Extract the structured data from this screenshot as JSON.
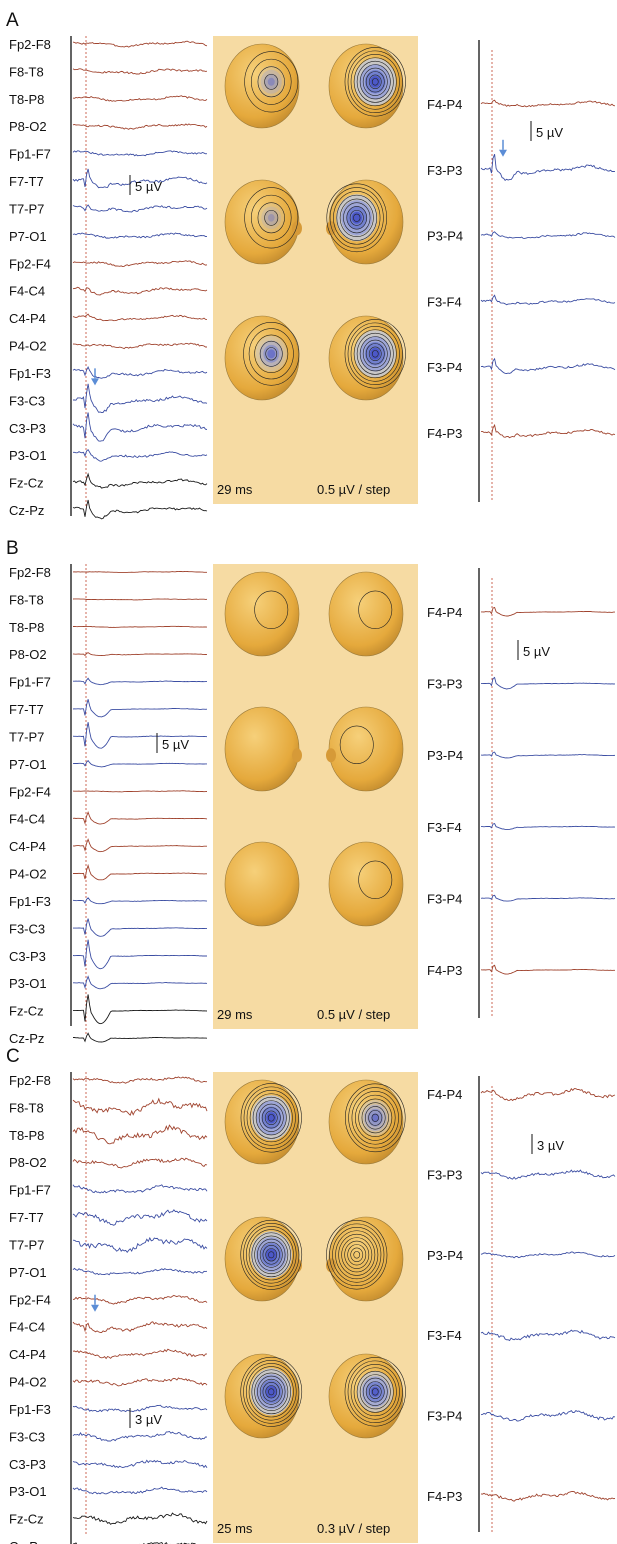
{
  "panels": [
    {
      "letter": "A",
      "time_label": "29 ms",
      "step_label": "0.5 µV / step",
      "left_scale": "5 µV",
      "right_scale": "5 µV",
      "left_channels": [
        {
          "label": "Fp2-F8",
          "color": "red",
          "amp": 1.0,
          "event": 0
        },
        {
          "label": "F8-T8",
          "color": "red",
          "amp": 1.0,
          "event": 0
        },
        {
          "label": "T8-P8",
          "color": "red",
          "amp": 1.0,
          "event": 0
        },
        {
          "label": "P8-O2",
          "color": "red",
          "amp": 1.0,
          "event": 0
        },
        {
          "label": "Fp1-F7",
          "color": "blue",
          "amp": 1.0,
          "event": 0
        },
        {
          "label": "F7-T7",
          "color": "blue",
          "amp": 1.5,
          "event": 6
        },
        {
          "label": "T7-P7",
          "color": "blue",
          "amp": 1.2,
          "event": 2
        },
        {
          "label": "P7-O1",
          "color": "blue",
          "amp": 1.0,
          "event": 0
        },
        {
          "label": "Fp2-F4",
          "color": "red",
          "amp": 1.0,
          "event": 0
        },
        {
          "label": "F4-C4",
          "color": "red",
          "amp": 1.2,
          "event": 2
        },
        {
          "label": "C4-P4",
          "color": "red",
          "amp": 1.0,
          "event": 1
        },
        {
          "label": "P4-O2",
          "color": "red",
          "amp": 1.0,
          "event": 0
        },
        {
          "label": "Fp1-F3",
          "color": "blue",
          "amp": 1.2,
          "event": 3
        },
        {
          "label": "F3-C3",
          "color": "blue",
          "amp": 1.5,
          "event": 9
        },
        {
          "label": "C3-P3",
          "color": "blue",
          "amp": 1.5,
          "event": 10
        },
        {
          "label": "P3-O1",
          "color": "blue",
          "amp": 1.2,
          "event": 3
        },
        {
          "label": "Fz-Cz",
          "color": "black",
          "amp": 1.2,
          "event": 4
        },
        {
          "label": "Cz-Pz",
          "color": "black",
          "amp": 1.2,
          "event": 6
        }
      ],
      "right_channels": [
        {
          "label": "F4-P4",
          "color": "red",
          "amp": 1.0,
          "event": 2
        },
        {
          "label": "F3-P3",
          "color": "blue",
          "amp": 1.5,
          "event": 9
        },
        {
          "label": "P3-P4",
          "color": "blue",
          "amp": 1.0,
          "event": 2
        },
        {
          "label": "F3-F4",
          "color": "blue",
          "amp": 1.0,
          "event": 3
        },
        {
          "label": "F3-P4",
          "color": "blue",
          "amp": 1.2,
          "event": 5
        },
        {
          "label": "F4-P3",
          "color": "red",
          "amp": 1.2,
          "event": 4
        }
      ],
      "left_arrow_channel": 13,
      "right_arrow_channel": 1,
      "maps": [
        {
          "blue": 0.2,
          "lines": 4
        },
        {
          "blue": 1.0,
          "lines": 10
        },
        {
          "blue": 0.1,
          "lines": 4
        },
        {
          "blue": 1.0,
          "lines": 9
        },
        {
          "blue": 0.4,
          "lines": 5
        },
        {
          "blue": 1.0,
          "lines": 10
        }
      ]
    },
    {
      "letter": "B",
      "time_label": "29 ms",
      "step_label": "0.5 µV / step",
      "left_scale": "5 µV",
      "right_scale": "5 µV",
      "left_channels": [
        {
          "label": "Fp2-F8",
          "color": "red",
          "amp": 0.2,
          "event": 0
        },
        {
          "label": "F8-T8",
          "color": "red",
          "amp": 0.2,
          "event": 0
        },
        {
          "label": "T8-P8",
          "color": "red",
          "amp": 0.2,
          "event": 0
        },
        {
          "label": "P8-O2",
          "color": "red",
          "amp": 0.2,
          "event": 1
        },
        {
          "label": "Fp1-F7",
          "color": "blue",
          "amp": 0.2,
          "event": 2
        },
        {
          "label": "F7-T7",
          "color": "blue",
          "amp": 0.2,
          "event": 6
        },
        {
          "label": "T7-P7",
          "color": "blue",
          "amp": 0.2,
          "event": 9
        },
        {
          "label": "P7-O1",
          "color": "blue",
          "amp": 0.2,
          "event": 2
        },
        {
          "label": "Fp2-F4",
          "color": "red",
          "amp": 0.2,
          "event": 0
        },
        {
          "label": "F4-C4",
          "color": "red",
          "amp": 0.2,
          "event": 4
        },
        {
          "label": "C4-P4",
          "color": "red",
          "amp": 0.2,
          "event": 4
        },
        {
          "label": "P4-O2",
          "color": "red",
          "amp": 0.2,
          "event": 5
        },
        {
          "label": "Fp1-F3",
          "color": "blue",
          "amp": 0.2,
          "event": 2
        },
        {
          "label": "F3-C3",
          "color": "blue",
          "amp": 0.2,
          "event": 6
        },
        {
          "label": "C3-P3",
          "color": "blue",
          "amp": 0.2,
          "event": 10
        },
        {
          "label": "P3-O1",
          "color": "blue",
          "amp": 0.2,
          "event": 4
        },
        {
          "label": "Fz-Cz",
          "color": "black",
          "amp": 0.2,
          "event": 10
        },
        {
          "label": "Cz-Pz",
          "color": "black",
          "amp": 0.2,
          "event": 3
        }
      ],
      "right_channels": [
        {
          "label": "F4-P4",
          "color": "red",
          "amp": 0.2,
          "event": 3
        },
        {
          "label": "F3-P3",
          "color": "blue",
          "amp": 0.2,
          "event": 4
        },
        {
          "label": "P3-P4",
          "color": "blue",
          "amp": 0.2,
          "event": 2
        },
        {
          "label": "F3-F4",
          "color": "blue",
          "amp": 0.2,
          "event": 2
        },
        {
          "label": "F3-P4",
          "color": "blue",
          "amp": 0.2,
          "event": 2
        },
        {
          "label": "F4-P3",
          "color": "red",
          "amp": 0.2,
          "event": 3
        }
      ],
      "left_arrow_channel": -1,
      "right_arrow_channel": -1,
      "maps": [
        {
          "blue": 0.0,
          "lines": 1
        },
        {
          "blue": 0.0,
          "lines": 1
        },
        {
          "blue": 0.0,
          "lines": 0
        },
        {
          "blue": 0.0,
          "lines": 1
        },
        {
          "blue": 0.0,
          "lines": 0
        },
        {
          "blue": 0.0,
          "lines": 1
        }
      ]
    },
    {
      "letter": "C",
      "time_label": "25 ms",
      "step_label": "0.3 µV / step",
      "left_scale": "3 µV",
      "right_scale": "3 µV",
      "left_channels": [
        {
          "label": "Fp2-F8",
          "color": "red",
          "amp": 1.2,
          "event": 0
        },
        {
          "label": "F8-T8",
          "color": "red",
          "amp": 3.0,
          "event": 0
        },
        {
          "label": "T8-P8",
          "color": "red",
          "amp": 3.0,
          "event": 0
        },
        {
          "label": "P8-O2",
          "color": "red",
          "amp": 1.8,
          "event": 0
        },
        {
          "label": "Fp1-F7",
          "color": "blue",
          "amp": 1.6,
          "event": 0
        },
        {
          "label": "F7-T7",
          "color": "blue",
          "amp": 2.6,
          "event": 0
        },
        {
          "label": "T7-P7",
          "color": "blue",
          "amp": 2.8,
          "event": 0
        },
        {
          "label": "P7-O1",
          "color": "blue",
          "amp": 1.2,
          "event": 0
        },
        {
          "label": "Fp2-F4",
          "color": "red",
          "amp": 1.5,
          "event": 0
        },
        {
          "label": "F4-C4",
          "color": "red",
          "amp": 1.8,
          "event": 3
        },
        {
          "label": "C4-P4",
          "color": "red",
          "amp": 1.5,
          "event": 0
        },
        {
          "label": "P4-O2",
          "color": "red",
          "amp": 1.4,
          "event": 0
        },
        {
          "label": "Fp1-F3",
          "color": "blue",
          "amp": 1.3,
          "event": 0
        },
        {
          "label": "F3-C3",
          "color": "blue",
          "amp": 1.6,
          "event": 0
        },
        {
          "label": "C3-P3",
          "color": "blue",
          "amp": 1.5,
          "event": 0
        },
        {
          "label": "P3-O1",
          "color": "blue",
          "amp": 1.3,
          "event": 0
        },
        {
          "label": "Fz-Cz",
          "color": "black",
          "amp": 2.0,
          "event": 0
        },
        {
          "label": "Cz-Pz",
          "color": "black",
          "amp": 2.0,
          "event": 0
        }
      ],
      "right_channels": [
        {
          "label": "F4-P4",
          "color": "red",
          "amp": 1.8,
          "event": 2
        },
        {
          "label": "F3-P3",
          "color": "blue",
          "amp": 1.5,
          "event": 0
        },
        {
          "label": "P3-P4",
          "color": "blue",
          "amp": 1.0,
          "event": 0
        },
        {
          "label": "F3-F4",
          "color": "blue",
          "amp": 1.8,
          "event": 0
        },
        {
          "label": "F3-P4",
          "color": "blue",
          "amp": 1.8,
          "event": 0
        },
        {
          "label": "F4-P3",
          "color": "red",
          "amp": 1.6,
          "event": 0
        }
      ],
      "left_arrow_channel": 9,
      "right_arrow_channel": -1,
      "maps": [
        {
          "blue": 0.9,
          "lines": 10
        },
        {
          "blue": 0.4,
          "lines": 9
        },
        {
          "blue": 1.0,
          "lines": 11
        },
        {
          "blue": 0.0,
          "lines": 10
        },
        {
          "blue": 1.0,
          "lines": 11
        },
        {
          "blue": 0.7,
          "lines": 10
        }
      ]
    }
  ]
}
